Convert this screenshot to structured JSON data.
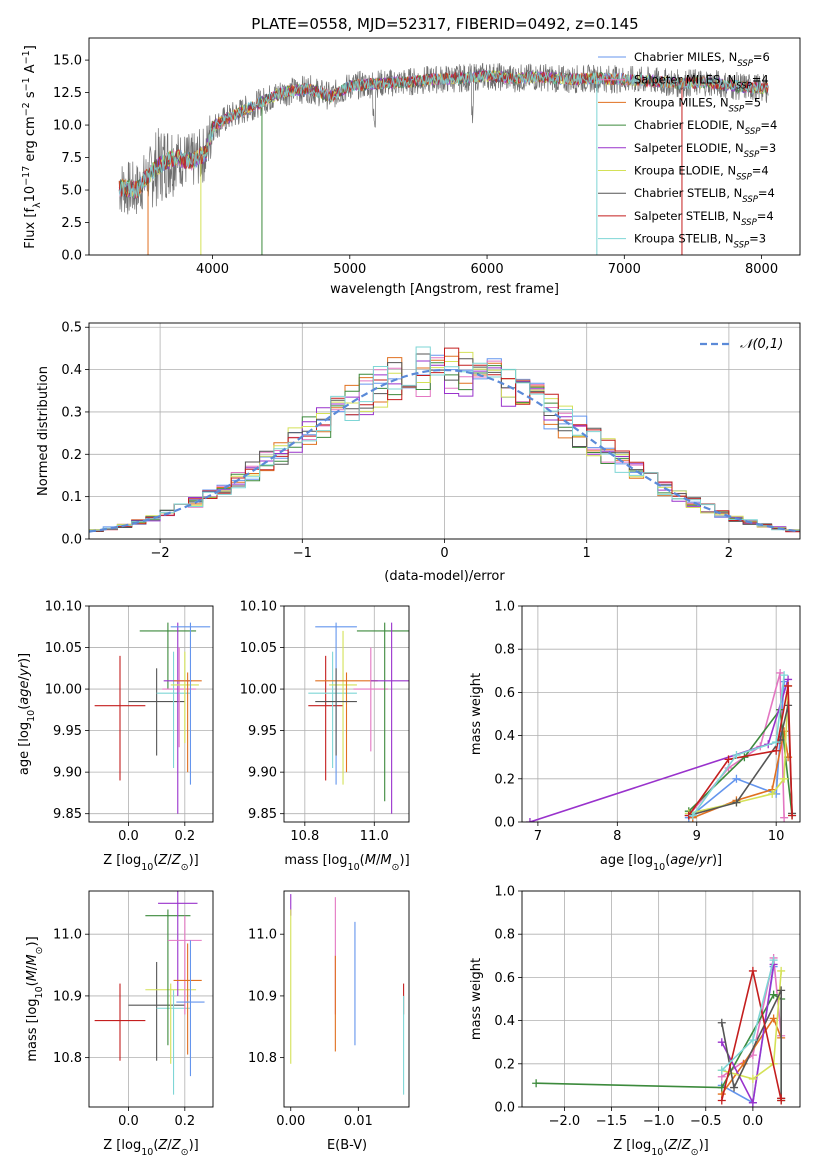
{
  "figure": {
    "title": "PLATE=0558, MJD=52317, FIBERID=0492, z=0.145"
  },
  "colors": {
    "Chabrier MILES": "#6495ed",
    "Salpeter MILES": "#e377c2",
    "Kroupa MILES": "#e07020",
    "Chabrier ELODIE": "#3c8a3c",
    "Salpeter ELODIE": "#9932cc",
    "Kroupa ELODIE": "#d4e157",
    "Chabrier STELIB": "#555555",
    "Salpeter STELIB": "#c41e1e",
    "Kroupa STELIB": "#7ed6d6",
    "normal": "#5b8ad8"
  },
  "chart_data": [
    {
      "type": "line",
      "id": "spectrum",
      "title": "PLATE=0558, MJD=52317, FIBERID=0492, z=0.145",
      "xlabel": "wavelength [Angstrom, rest frame]",
      "ylabel": "Flux [f_λ 10^-17 erg cm^-2 s^-1 A^-1]",
      "xlim": [
        3100,
        8280
      ],
      "ylim": [
        0,
        16.7
      ],
      "xticks": [
        4000,
        5000,
        6000,
        7000,
        8000
      ],
      "yticks": [
        0.0,
        2.5,
        5.0,
        7.5,
        10.0,
        12.5,
        15.0
      ],
      "data_envelope": {
        "x": [
          3320,
          3450,
          3560,
          3700,
          3850,
          3950,
          4000,
          4100,
          4300,
          4500,
          4700,
          4860,
          5000,
          5200,
          5400,
          5600,
          5800,
          6000,
          6200,
          6400,
          6563,
          6800,
          7000,
          7200,
          7400,
          7600,
          7800,
          8050
        ],
        "y": [
          5.2,
          5.0,
          6.5,
          7.5,
          7.2,
          7.8,
          9.8,
          10.5,
          11.5,
          12.5,
          12.8,
          12.2,
          13.0,
          13.2,
          13.3,
          13.5,
          13.6,
          13.8,
          13.6,
          13.7,
          13.5,
          13.6,
          13.5,
          13.4,
          13.2,
          13.3,
          13.0,
          12.8
        ]
      },
      "series": [
        {
          "name": "Chabrier MILES",
          "nssp": "6"
        },
        {
          "name": "Salpeter MILES",
          "nssp": "4"
        },
        {
          "name": "Kroupa MILES",
          "nssp": "5"
        },
        {
          "name": "Chabrier ELODIE",
          "nssp": "4"
        },
        {
          "name": "Salpeter ELODIE",
          "nssp": "3"
        },
        {
          "name": "Kroupa ELODIE",
          "nssp": "4"
        },
        {
          "name": "Chabrier STELIB",
          "nssp": "4"
        },
        {
          "name": "Salpeter STELIB",
          "nssp": "4"
        },
        {
          "name": "Kroupa STELIB",
          "nssp": "3"
        }
      ],
      "legend_position": "top-right"
    },
    {
      "type": "bar",
      "id": "residuals",
      "xlabel": "(data-model)/error",
      "ylabel": "Normed distribution",
      "xlim": [
        -2.5,
        2.5
      ],
      "ylim": [
        0,
        0.51
      ],
      "xticks": [
        -2,
        -1,
        0,
        1,
        2
      ],
      "yticks": [
        0.0,
        0.1,
        0.2,
        0.3,
        0.4,
        0.5
      ],
      "bin_width": 0.1,
      "histogram_shape": "step histograms per model around a standard normal",
      "reference_curve": {
        "name": "𝒩(0,1)",
        "style": "dashed",
        "mean": 0,
        "sd": 1
      },
      "legend_position": "top-right",
      "grid": true
    },
    {
      "type": "scatter",
      "id": "age_vs_Z",
      "xlabel": "Z [log10(Z/Z⊙)]",
      "ylabel": "age  [log10(age/yr)]",
      "xlim": [
        -0.14,
        0.3
      ],
      "ylim": [
        9.84,
        10.1
      ],
      "xticks": [
        0.0,
        0.2
      ],
      "yticks": [
        9.85,
        9.9,
        9.95,
        10.0,
        10.05,
        10.1
      ],
      "points": [
        {
          "series": "Salpeter STELIB",
          "x": -0.03,
          "y": 9.98,
          "xerr": 0.09,
          "yerr_lo": 0.09,
          "yerr_hi": 0.06
        },
        {
          "series": "Chabrier STELIB",
          "x": 0.1,
          "y": 9.985,
          "xerr": 0.1,
          "yerr_lo": 0.065,
          "yerr_hi": 0.04
        },
        {
          "series": "Chabrier ELODIE",
          "x": 0.14,
          "y": 10.07,
          "xerr": 0.1,
          "yerr_lo": 0.07,
          "yerr_hi": 0.01
        },
        {
          "series": "Salpeter MILES",
          "x": 0.18,
          "y": 10.0,
          "xerr": 0.06,
          "yerr_lo": 0.07,
          "yerr_hi": 0.05
        },
        {
          "series": "Kroupa STELIB",
          "x": 0.16,
          "y": 9.995,
          "xerr": 0.06,
          "yerr_lo": 0.09,
          "yerr_hi": 0.05
        },
        {
          "series": "Salpeter ELODIE",
          "x": 0.175,
          "y": 10.01,
          "xerr": 0.05,
          "yerr_lo": 0.16,
          "yerr_hi": 0.07
        },
        {
          "series": "Kroupa ELODIE",
          "x": 0.2,
          "y": 10.005,
          "xerr": 0.05,
          "yerr_lo": 0.07,
          "yerr_hi": 0.04
        },
        {
          "series": "Kroupa MILES",
          "x": 0.21,
          "y": 10.01,
          "xerr": 0.05,
          "yerr_lo": 0.11,
          "yerr_hi": 0.01
        },
        {
          "series": "Chabrier MILES",
          "x": 0.22,
          "y": 10.075,
          "xerr": 0.07,
          "yerr_lo": 0.19,
          "yerr_hi": 0.005
        }
      ],
      "grid": true
    },
    {
      "type": "scatter",
      "id": "age_vs_mass",
      "xlabel": "mass [log10(M/M⊙)]",
      "ylabel": "",
      "xlim": [
        10.74,
        11.1
      ],
      "ylim": [
        9.84,
        10.1
      ],
      "xticks": [
        10.8,
        11.0
      ],
      "yticks": [
        9.85,
        9.9,
        9.95,
        10.0,
        10.05,
        10.1
      ],
      "points": [
        {
          "series": "Salpeter STELIB",
          "x": 10.86,
          "y": 9.98,
          "xerr": 0.05,
          "yerr_lo": 0.09,
          "yerr_hi": 0.06
        },
        {
          "series": "Chabrier MILES",
          "x": 10.89,
          "y": 10.075,
          "xerr": 0.06,
          "yerr_lo": 0.19,
          "yerr_hi": 0.005
        },
        {
          "series": "Kroupa STELIB",
          "x": 10.88,
          "y": 9.995,
          "xerr": 0.07,
          "yerr_lo": 0.09,
          "yerr_hi": 0.05
        },
        {
          "series": "Kroupa ELODIE",
          "x": 10.91,
          "y": 10.005,
          "xerr": 0.04,
          "yerr_lo": 0.12,
          "yerr_hi": 0.065
        },
        {
          "series": "Kroupa MILES",
          "x": 10.92,
          "y": 10.01,
          "xerr": 0.09,
          "yerr_lo": 0.11,
          "yerr_hi": 0.01
        },
        {
          "series": "Chabrier STELIB",
          "x": 10.89,
          "y": 9.985,
          "xerr": 0.06,
          "yerr_lo": 0.065,
          "yerr_hi": 0.04
        },
        {
          "series": "Salpeter MILES",
          "x": 10.99,
          "y": 10.0,
          "xerr": 0.05,
          "yerr_lo": 0.075,
          "yerr_hi": 0.05
        },
        {
          "series": "Chabrier ELODIE",
          "x": 11.03,
          "y": 10.07,
          "xerr": 0.08,
          "yerr_lo": 0.205,
          "yerr_hi": 0.01
        },
        {
          "series": "Salpeter ELODIE",
          "x": 11.05,
          "y": 10.01,
          "xerr": 0.06,
          "yerr_lo": 0.16,
          "yerr_hi": 0.07
        }
      ],
      "grid": true
    },
    {
      "type": "line",
      "id": "weight_vs_age",
      "xlabel": "age  [log10(age/yr)]",
      "ylabel": "mass weight",
      "xlim": [
        6.8,
        10.3
      ],
      "ylim": [
        0,
        1
      ],
      "xticks": [
        7,
        8,
        9,
        10
      ],
      "yticks": [
        0.0,
        0.2,
        0.4,
        0.6,
        0.8,
        1.0
      ],
      "series": [
        {
          "name": "Chabrier MILES",
          "x": [
            8.9,
            9.5,
            10.0,
            10.1
          ],
          "y": [
            0.02,
            0.2,
            0.13,
            0.65
          ]
        },
        {
          "name": "Salpeter MILES",
          "x": [
            8.9,
            9.4,
            9.8,
            10.05,
            10.1
          ],
          "y": [
            0.03,
            0.25,
            0.35,
            0.69,
            0.02
          ]
        },
        {
          "name": "Kroupa MILES",
          "x": [
            8.95,
            9.5,
            9.95,
            10.1,
            10.15
          ],
          "y": [
            0.02,
            0.1,
            0.15,
            0.42,
            0.3
          ]
        },
        {
          "name": "Chabrier ELODIE",
          "x": [
            8.9,
            9.6,
            10.05,
            10.2
          ],
          "y": [
            0.05,
            0.3,
            0.52,
            0.03
          ]
        },
        {
          "name": "Salpeter ELODIE",
          "x": [
            6.9,
            9.9,
            10.15
          ],
          "y": [
            0.0,
            0.36,
            0.66
          ]
        },
        {
          "name": "Kroupa ELODIE",
          "x": [
            8.9,
            9.5,
            9.95,
            10.1,
            10.15
          ],
          "y": [
            0.04,
            0.09,
            0.13,
            0.2,
            0.63
          ]
        },
        {
          "name": "Chabrier STELIB",
          "x": [
            8.9,
            9.5,
            10.05,
            10.15,
            10.2
          ],
          "y": [
            0.03,
            0.09,
            0.38,
            0.54,
            0.04
          ]
        },
        {
          "name": "Salpeter STELIB",
          "x": [
            8.9,
            9.4,
            10.0,
            10.15,
            10.2
          ],
          "y": [
            0.03,
            0.29,
            0.33,
            0.63,
            0.03
          ]
        },
        {
          "name": "Kroupa STELIB",
          "x": [
            8.95,
            9.5,
            10.0,
            10.1
          ],
          "y": [
            0.03,
            0.31,
            0.37,
            0.68
          ]
        }
      ],
      "grid": true
    },
    {
      "type": "scatter",
      "id": "mass_vs_Z",
      "xlabel": "Z [log10(Z/Z⊙)]",
      "ylabel": "mass [log10(M/M⊙)]",
      "xlim": [
        -0.14,
        0.3
      ],
      "ylim": [
        10.72,
        11.07
      ],
      "xticks": [
        0.0,
        0.2
      ],
      "yticks": [
        10.8,
        10.9,
        11.0
      ],
      "points": [
        {
          "series": "Salpeter STELIB",
          "x": -0.03,
          "y": 10.86,
          "xerr": 0.09,
          "yerr_lo": 0.065,
          "yerr_hi": 0.06
        },
        {
          "series": "Chabrier STELIB",
          "x": 0.1,
          "y": 10.885,
          "xerr": 0.1,
          "yerr_lo": 0.09,
          "yerr_hi": 0.07
        },
        {
          "series": "Kroupa STELIB",
          "x": 0.16,
          "y": 10.88,
          "xerr": 0.06,
          "yerr_lo": 0.14,
          "yerr_hi": 0.03
        },
        {
          "series": "Kroupa ELODIE",
          "x": 0.15,
          "y": 10.91,
          "xerr": 0.09,
          "yerr_lo": 0.12,
          "yerr_hi": 0.01
        },
        {
          "series": "Chabrier ELODIE",
          "x": 0.14,
          "y": 11.03,
          "xerr": 0.08,
          "yerr_lo": 0.21,
          "yerr_hi": 0.01
        },
        {
          "series": "Salpeter ELODIE",
          "x": 0.175,
          "y": 11.05,
          "xerr": 0.07,
          "yerr_lo": 0.15,
          "yerr_hi": 0.02
        },
        {
          "series": "Salpeter MILES",
          "x": 0.2,
          "y": 10.99,
          "xerr": 0.06,
          "yerr_lo": 0.12,
          "yerr_hi": 0.04
        },
        {
          "series": "Kroupa MILES",
          "x": 0.21,
          "y": 10.925,
          "xerr": 0.05,
          "yerr_lo": 0.12,
          "yerr_hi": 0.06
        },
        {
          "series": "Chabrier MILES",
          "x": 0.22,
          "y": 10.89,
          "xerr": 0.05,
          "yerr_lo": 0.12,
          "yerr_hi": 0.1
        }
      ],
      "grid": true
    },
    {
      "type": "scatter",
      "id": "mass_vs_EBV",
      "xlabel": "E(B-V)",
      "ylabel": "",
      "xlim": [
        -0.001,
        0.0175
      ],
      "ylim": [
        10.72,
        11.07
      ],
      "xticks": [
        0.0,
        0.01
      ],
      "xtick_labels": [
        "0.00",
        "0.01"
      ],
      "yticks": [
        10.8,
        10.9,
        11.0
      ],
      "points": [
        {
          "series": "Salpeter ELODIE",
          "x": 0.0,
          "y": 11.05,
          "yerr_lo": 0.02,
          "yerr_hi": 0.015
        },
        {
          "series": "Kroupa ELODIE",
          "x": 0.0,
          "y": 10.91,
          "yerr_lo": 0.12,
          "yerr_hi": 0.13
        },
        {
          "series": "Salpeter MILES",
          "x": 0.0066,
          "y": 10.99,
          "yerr_lo": 0.12,
          "yerr_hi": 0.07
        },
        {
          "series": "Kroupa MILES",
          "x": 0.0066,
          "y": 10.89,
          "yerr_lo": 0.08,
          "yerr_hi": 0.075
        },
        {
          "series": "Chabrier MILES",
          "x": 0.0095,
          "y": 10.89,
          "yerr_lo": 0.07,
          "yerr_hi": 0.13
        },
        {
          "series": "Salpeter STELIB",
          "x": 0.0167,
          "y": 10.9,
          "yerr_lo": 0.03,
          "yerr_hi": 0.02
        },
        {
          "series": "Kroupa STELIB",
          "x": 0.0167,
          "y": 10.86,
          "yerr_lo": 0.12,
          "yerr_hi": 0.04
        }
      ]
    },
    {
      "type": "line",
      "id": "weight_vs_Z",
      "xlabel": "Z [log10(Z/Z⊙)]",
      "ylabel": "mass weight",
      "xlim": [
        -2.45,
        0.5
      ],
      "ylim": [
        0,
        1
      ],
      "xticks": [
        -2.0,
        -1.5,
        -1.0,
        -0.5,
        0.0
      ],
      "yticks": [
        0.0,
        0.2,
        0.4,
        0.6,
        0.8,
        1.0
      ],
      "series": [
        {
          "name": "Chabrier MILES",
          "x": [
            -0.33,
            0.0,
            0.22
          ],
          "y": [
            0.1,
            0.02,
            0.65
          ]
        },
        {
          "name": "Salpeter MILES",
          "x": [
            -0.33,
            0.0,
            0.22,
            0.3
          ],
          "y": [
            0.14,
            0.24,
            0.69,
            0.33
          ]
        },
        {
          "name": "Kroupa MILES",
          "x": [
            -0.33,
            -0.1,
            0.22,
            0.3
          ],
          "y": [
            0.06,
            0.2,
            0.41,
            0.32
          ]
        },
        {
          "name": "Chabrier ELODIE",
          "x": [
            -2.3,
            -0.33,
            0.22,
            0.3,
            0.3
          ],
          "y": [
            0.11,
            0.09,
            0.52,
            0.5,
            0.03
          ]
        },
        {
          "name": "Salpeter ELODIE",
          "x": [
            -0.33,
            0.0,
            0.22
          ],
          "y": [
            0.3,
            0.02,
            0.66
          ]
        },
        {
          "name": "Kroupa ELODIE",
          "x": [
            -0.33,
            0.0,
            0.22,
            0.3
          ],
          "y": [
            0.17,
            0.13,
            0.2,
            0.63
          ]
        },
        {
          "name": "Chabrier STELIB",
          "x": [
            -0.33,
            -0.2,
            0.3,
            0.3
          ],
          "y": [
            0.39,
            0.09,
            0.54,
            0.04
          ]
        },
        {
          "name": "Salpeter STELIB",
          "x": [
            -0.33,
            0.0,
            0.3,
            0.3
          ],
          "y": [
            0.03,
            0.63,
            0.03,
            0.04
          ]
        },
        {
          "name": "Kroupa STELIB",
          "x": [
            -0.33,
            0.0,
            0.22
          ],
          "y": [
            0.17,
            0.31,
            0.68
          ]
        }
      ],
      "grid": true
    }
  ]
}
